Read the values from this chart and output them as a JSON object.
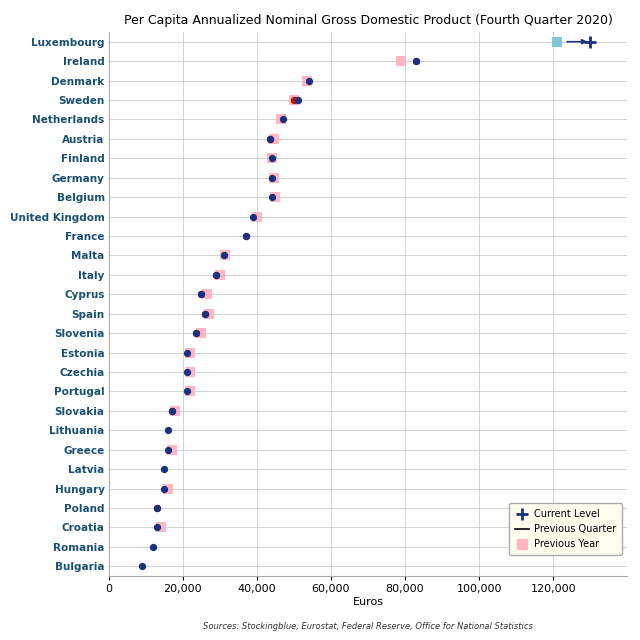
{
  "title": "Per Capita Annualized Nominal Gross Domestic Product (Fourth Quarter 2020)",
  "xlabel": "Euros",
  "source": "Sources: Stockingblue, Eurostat, Federal Reserve, Office for National Statistics",
  "countries": [
    "Luxembourg",
    "Ireland",
    "Denmark",
    "Sweden",
    "Netherlands",
    "Austria",
    "Finland",
    "Germany",
    "Belgium",
    "United Kingdom",
    "France",
    "Malta",
    "Italy",
    "Cyprus",
    "Spain",
    "Slovenia",
    "Estonia",
    "Czechia",
    "Portugal",
    "Slovakia",
    "Lithuania",
    "Greece",
    "Latvia",
    "Hungary",
    "Poland",
    "Croatia",
    "Romania",
    "Bulgaria"
  ],
  "current_level": [
    130000,
    83000,
    54000,
    51000,
    47000,
    43500,
    44000,
    44000,
    44000,
    39000,
    37000,
    31000,
    29000,
    25000,
    26000,
    23500,
    21000,
    21000,
    21000,
    17000,
    16000,
    16000,
    15000,
    15000,
    13000,
    13000,
    12000,
    9000
  ],
  "prev_quarter": [
    null,
    83000,
    null,
    50000,
    null,
    43500,
    null,
    null,
    null,
    null,
    37000,
    null,
    29000,
    25000,
    26000,
    23500,
    null,
    null,
    null,
    17000,
    null,
    null,
    null,
    null,
    13000,
    null,
    null,
    null
  ],
  "prev_year": [
    121000,
    79000,
    53500,
    50000,
    46500,
    44500,
    44000,
    44500,
    45000,
    40000,
    null,
    31500,
    30000,
    26500,
    27000,
    25000,
    22000,
    22000,
    22000,
    18000,
    null,
    17000,
    null,
    16000,
    null,
    14000,
    null,
    null
  ],
  "has_arrow": [
    true,
    false,
    false,
    false,
    false,
    false,
    false,
    false,
    false,
    false,
    false,
    false,
    false,
    false,
    false,
    false,
    false,
    false,
    false,
    false,
    false,
    false,
    false,
    false,
    false,
    false,
    false,
    false
  ],
  "blue": "#1a3080",
  "red": "#cc1100",
  "light_pink": "#ffb6c1",
  "light_blue_sq": "#add8e6",
  "teal_sq": "#7ec8d8",
  "xlim_max": 140000,
  "xticks": [
    0,
    20000,
    40000,
    60000,
    80000,
    100000,
    120000
  ],
  "xtick_labels": [
    "0",
    "20,000",
    "40,000",
    "60,000",
    "80,000",
    "100,000",
    "120,000"
  ],
  "ytick_color": "#1a5070",
  "grid_color": "#cccccc",
  "bg_color": "#ffffff",
  "legend_bg": "#fffff0",
  "title_fontsize": 9,
  "ylabel_fontsize": 7.5,
  "xlabel_fontsize": 8,
  "source_fontsize": 6,
  "legend_fontsize": 7,
  "dot_size": 18,
  "sq_size": 55
}
